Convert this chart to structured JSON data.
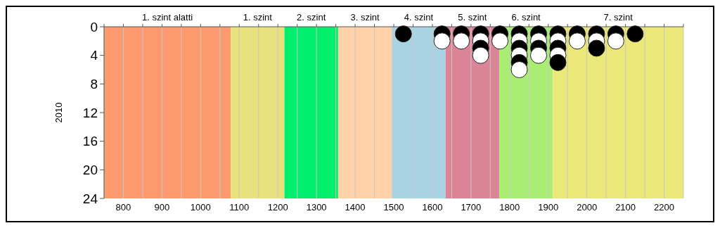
{
  "chart_data": {
    "type": "scatter",
    "ylabel": "2010",
    "xlim": [
      750,
      2250
    ],
    "xticks": [
      {
        "value": 750,
        "label": null
      },
      800,
      {
        "value": 850,
        "label": null
      },
      900,
      {
        "value": 950,
        "label": null
      },
      1000,
      {
        "value": 1050,
        "label": null
      },
      1100,
      {
        "value": 1150,
        "label": null
      },
      1200,
      {
        "value": 1250,
        "label": null
      },
      1300,
      {
        "value": 1350,
        "label": null
      },
      1400,
      {
        "value": 1450,
        "label": null
      },
      1500,
      {
        "value": 1550,
        "label": null
      },
      1600,
      {
        "value": 1650,
        "label": null
      },
      1700,
      {
        "value": 1750,
        "label": null
      },
      1800,
      {
        "value": 1850,
        "label": null
      },
      1900,
      {
        "value": 1950,
        "label": null
      },
      2000,
      {
        "value": 2050,
        "label": null
      },
      2100,
      {
        "value": 2150,
        "label": null
      },
      2200,
      {
        "value": 2250,
        "label": null
      }
    ],
    "ylim": [
      24,
      0
    ],
    "yticks": [
      0,
      4,
      8,
      12,
      16,
      20,
      24
    ],
    "grid": "x",
    "marker": "circle",
    "bands": [
      {
        "axis": "x",
        "from": 750,
        "to": 1078,
        "label": "1. szint alatti",
        "color": "#fc9a6e"
      },
      {
        "axis": "x",
        "from": 1078,
        "to": 1217,
        "label": "1. szint",
        "color": "#e9e07e"
      },
      {
        "axis": "x",
        "from": 1217,
        "to": 1356,
        "label": "2. szint",
        "color": "#00ee6c"
      },
      {
        "axis": "x",
        "from": 1356,
        "to": 1495,
        "label": "3. szint",
        "color": "#fed1a9"
      },
      {
        "axis": "x",
        "from": 1495,
        "to": 1634,
        "label": "4. szint",
        "color": "#a7d3e3"
      },
      {
        "axis": "x",
        "from": 1634,
        "to": 1773,
        "label": "5. szint",
        "color": "#da8498"
      },
      {
        "axis": "x",
        "from": 1773,
        "to": 1912,
        "label": "6. szint",
        "color": "#a9ed72"
      },
      {
        "axis": "x",
        "from": 1912,
        "to": 2250,
        "label": "7. szint",
        "color": "#ebe879"
      }
    ],
    "series": [
      {
        "color": "#000000",
        "x": [
          1525,
          1625,
          1675,
          1725,
          1725,
          1775,
          1825,
          1825,
          1825,
          1875,
          1875,
          1925,
          1925,
          1925,
          1975,
          2025,
          2025,
          2075,
          2125
        ],
        "values": [
          1,
          1,
          1,
          1,
          3,
          1,
          1,
          3,
          5,
          1,
          3,
          1,
          3,
          5,
          1,
          1,
          3,
          1,
          1
        ]
      },
      {
        "color": "#ffffff",
        "x": [
          1625,
          1675,
          1725,
          1725,
          1775,
          1825,
          1825,
          1825,
          1875,
          1875,
          1925,
          1925,
          1975,
          2025,
          2075
        ],
        "values": [
          2,
          2,
          2,
          4,
          2,
          2,
          4,
          6,
          2,
          4,
          2,
          4,
          2,
          2,
          2
        ]
      }
    ]
  }
}
